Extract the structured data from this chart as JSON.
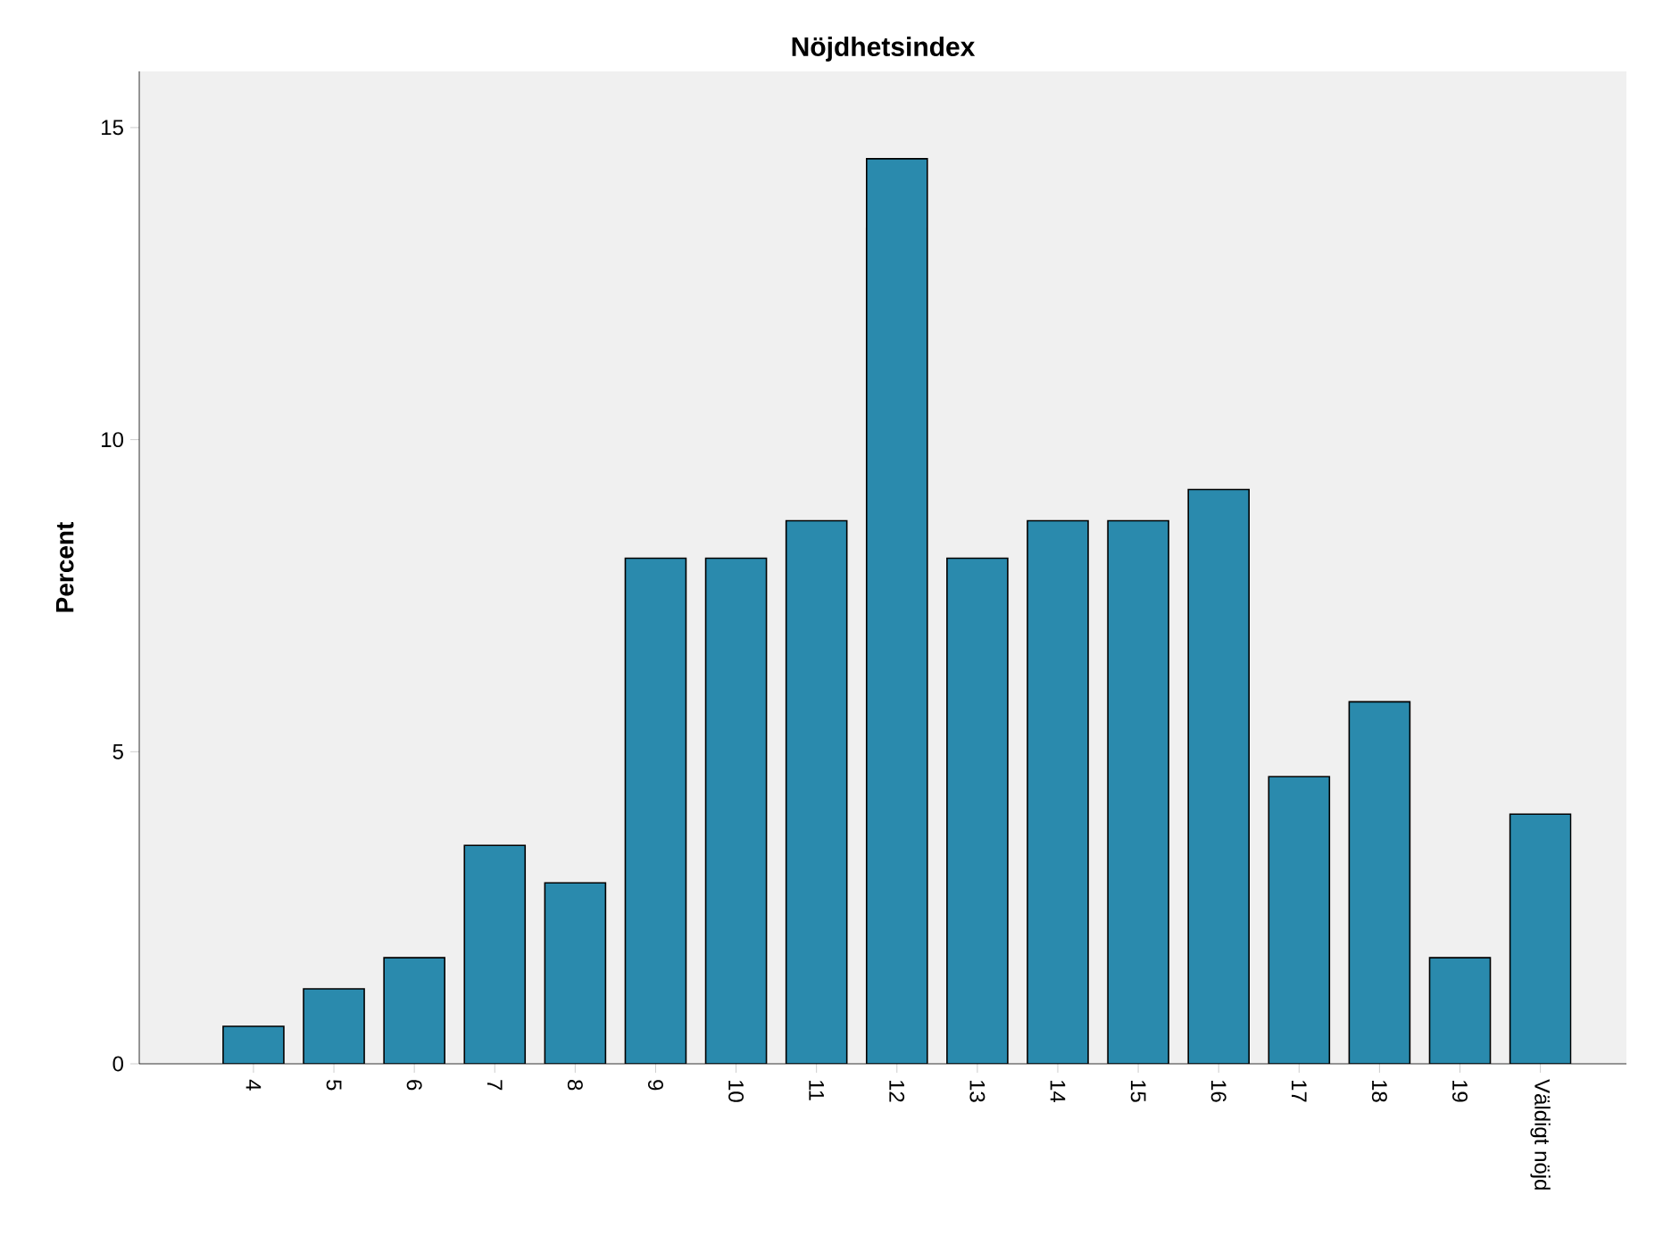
{
  "chart_data": {
    "type": "bar",
    "title": "Nöjdhetsindex",
    "ylabel": "Percent",
    "categories": [
      "4",
      "5",
      "6",
      "7",
      "8",
      "9",
      "10",
      "11",
      "12",
      "13",
      "14",
      "15",
      "16",
      "17",
      "18",
      "19",
      "Väldigt nöjd"
    ],
    "values": [
      0.6,
      1.2,
      1.7,
      3.5,
      2.9,
      8.1,
      8.1,
      8.7,
      14.5,
      8.1,
      8.7,
      8.7,
      9.2,
      4.6,
      5.8,
      1.7,
      4.0
    ],
    "color": "#2a8aad",
    "ylim": [
      0,
      15.9
    ],
    "yticks": [
      0,
      5,
      10,
      15
    ],
    "grid": false
  }
}
